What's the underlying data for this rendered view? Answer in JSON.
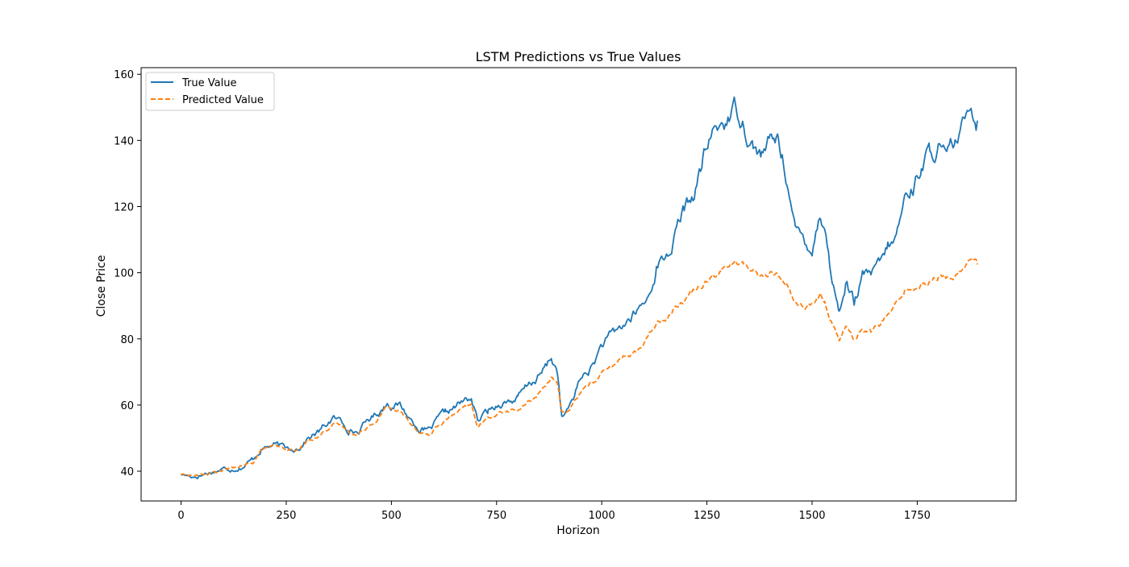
{
  "chart_data": {
    "type": "line",
    "title": "LSTM Predictions vs True Values",
    "xlabel": "Horizon",
    "ylabel": "Close Price",
    "xlim": [
      -95,
      1985
    ],
    "ylim": [
      31,
      162
    ],
    "x_ticks": [
      0,
      250,
      500,
      750,
      1000,
      1250,
      1500,
      1750
    ],
    "y_ticks": [
      40,
      60,
      80,
      100,
      120,
      140,
      160
    ],
    "grid": false,
    "legend_position": "upper-left",
    "x_range": [
      0,
      1893
    ],
    "series": [
      {
        "name": "True Value",
        "color": "#1f77b4",
        "line_style": "solid",
        "points": [
          [
            0,
            39
          ],
          [
            30,
            38.5
          ],
          [
            60,
            39.5
          ],
          [
            90,
            40.5
          ],
          [
            120,
            41
          ],
          [
            150,
            42
          ],
          [
            170,
            43.5
          ],
          [
            190,
            47
          ],
          [
            220,
            48
          ],
          [
            250,
            46.5
          ],
          [
            280,
            47.5
          ],
          [
            300,
            50
          ],
          [
            330,
            52
          ],
          [
            360,
            56
          ],
          [
            380,
            55
          ],
          [
            400,
            53
          ],
          [
            420,
            52
          ],
          [
            450,
            56
          ],
          [
            470,
            58
          ],
          [
            490,
            61
          ],
          [
            520,
            60
          ],
          [
            550,
            55
          ],
          [
            570,
            53
          ],
          [
            590,
            52
          ],
          [
            610,
            55
          ],
          [
            630,
            57
          ],
          [
            660,
            60
          ],
          [
            690,
            62
          ],
          [
            705,
            55
          ],
          [
            730,
            58
          ],
          [
            760,
            61
          ],
          [
            800,
            62
          ],
          [
            830,
            66
          ],
          [
            860,
            70
          ],
          [
            880,
            74
          ],
          [
            895,
            70
          ],
          [
            905,
            56
          ],
          [
            920,
            58
          ],
          [
            950,
            68
          ],
          [
            980,
            72
          ],
          [
            1000,
            78
          ],
          [
            1030,
            81
          ],
          [
            1060,
            85
          ],
          [
            1090,
            89
          ],
          [
            1110,
            92
          ],
          [
            1130,
            102
          ],
          [
            1160,
            106
          ],
          [
            1190,
            117
          ],
          [
            1220,
            124
          ],
          [
            1240,
            133
          ],
          [
            1260,
            141
          ],
          [
            1285,
            145
          ],
          [
            1300,
            147
          ],
          [
            1320,
            150
          ],
          [
            1340,
            146
          ],
          [
            1360,
            139
          ],
          [
            1380,
            136
          ],
          [
            1400,
            139
          ],
          [
            1420,
            140
          ],
          [
            1440,
            130
          ],
          [
            1460,
            112
          ],
          [
            1480,
            110
          ],
          [
            1500,
            108
          ],
          [
            1520,
            119
          ],
          [
            1530,
            115
          ],
          [
            1545,
            100
          ],
          [
            1565,
            88
          ],
          [
            1580,
            98
          ],
          [
            1600,
            91
          ],
          [
            1620,
            98
          ],
          [
            1640,
            99
          ],
          [
            1660,
            101
          ],
          [
            1680,
            107
          ],
          [
            1700,
            110
          ],
          [
            1720,
            122
          ],
          [
            1740,
            126
          ],
          [
            1760,
            133
          ],
          [
            1780,
            136
          ],
          [
            1800,
            138
          ],
          [
            1820,
            133
          ],
          [
            1840,
            138
          ],
          [
            1860,
            143
          ],
          [
            1875,
            153
          ],
          [
            1893,
            146
          ]
        ]
      },
      {
        "name": "Predicted Value",
        "color": "#ff7f0e",
        "line_style": "dashed",
        "points": [
          [
            0,
            39
          ],
          [
            30,
            38.7
          ],
          [
            60,
            39
          ],
          [
            90,
            40
          ],
          [
            120,
            40.8
          ],
          [
            150,
            41.5
          ],
          [
            170,
            42.5
          ],
          [
            190,
            46.5
          ],
          [
            220,
            47.5
          ],
          [
            250,
            46
          ],
          [
            280,
            46.5
          ],
          [
            300,
            49
          ],
          [
            330,
            51
          ],
          [
            360,
            54.5
          ],
          [
            380,
            53.5
          ],
          [
            400,
            52
          ],
          [
            420,
            51
          ],
          [
            450,
            54.5
          ],
          [
            470,
            56.5
          ],
          [
            490,
            59.5
          ],
          [
            520,
            58
          ],
          [
            550,
            54
          ],
          [
            570,
            52
          ],
          [
            590,
            51
          ],
          [
            610,
            53.5
          ],
          [
            630,
            55.5
          ],
          [
            660,
            58
          ],
          [
            690,
            59.5
          ],
          [
            705,
            53.5
          ],
          [
            730,
            56
          ],
          [
            760,
            58
          ],
          [
            800,
            58.5
          ],
          [
            830,
            61
          ],
          [
            860,
            65
          ],
          [
            880,
            69
          ],
          [
            895,
            66
          ],
          [
            905,
            57
          ],
          [
            920,
            58
          ],
          [
            950,
            64
          ],
          [
            980,
            67
          ],
          [
            1000,
            70
          ],
          [
            1030,
            72
          ],
          [
            1060,
            75
          ],
          [
            1090,
            77
          ],
          [
            1110,
            80
          ],
          [
            1130,
            85
          ],
          [
            1160,
            88
          ],
          [
            1190,
            92
          ],
          [
            1220,
            95
          ],
          [
            1240,
            97
          ],
          [
            1260,
            100
          ],
          [
            1285,
            101
          ],
          [
            1300,
            102
          ],
          [
            1320,
            103
          ],
          [
            1340,
            102
          ],
          [
            1360,
            101
          ],
          [
            1380,
            99
          ],
          [
            1400,
            99.5
          ],
          [
            1420,
            99
          ],
          [
            1440,
            97
          ],
          [
            1460,
            91
          ],
          [
            1480,
            90
          ],
          [
            1500,
            90
          ],
          [
            1520,
            93
          ],
          [
            1530,
            91
          ],
          [
            1545,
            86
          ],
          [
            1565,
            80
          ],
          [
            1580,
            84
          ],
          [
            1600,
            80
          ],
          [
            1620,
            83
          ],
          [
            1640,
            82
          ],
          [
            1660,
            84
          ],
          [
            1680,
            87
          ],
          [
            1700,
            90
          ],
          [
            1720,
            95
          ],
          [
            1740,
            95
          ],
          [
            1760,
            97
          ],
          [
            1780,
            98
          ],
          [
            1800,
            99
          ],
          [
            1820,
            98
          ],
          [
            1840,
            99
          ],
          [
            1860,
            102
          ],
          [
            1875,
            104.5
          ],
          [
            1893,
            102.5
          ]
        ]
      }
    ]
  }
}
